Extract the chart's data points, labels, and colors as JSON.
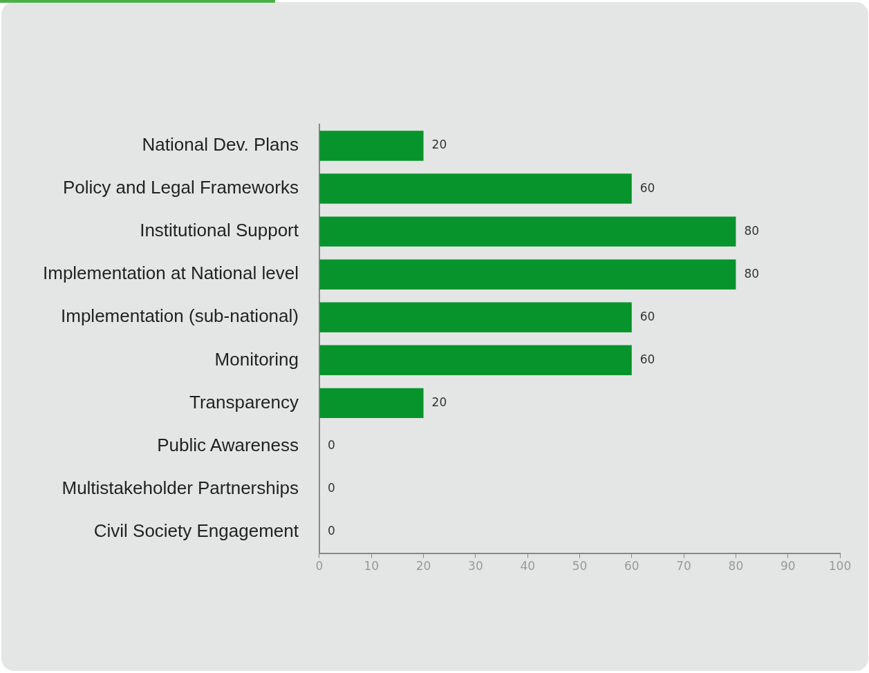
{
  "chart_data": {
    "type": "bar",
    "orientation": "horizontal",
    "categories": [
      "National Dev. Plans",
      "Policy and Legal Frameworks",
      "Institutional Support",
      "Implementation at National level",
      "Implementation (sub-national)",
      "Monitoring",
      "Transparency",
      "Public Awareness",
      "Multistakeholder Partnerships",
      "Civil Society Engagement"
    ],
    "values": [
      20,
      60,
      80,
      80,
      60,
      60,
      20,
      0,
      0,
      0
    ],
    "color": "#08942c",
    "xlim": [
      0,
      100
    ],
    "xticks": [
      0,
      10,
      20,
      30,
      40,
      50,
      60,
      70,
      80,
      90,
      100
    ],
    "data_labels": true,
    "grid": false,
    "legend": false
  }
}
